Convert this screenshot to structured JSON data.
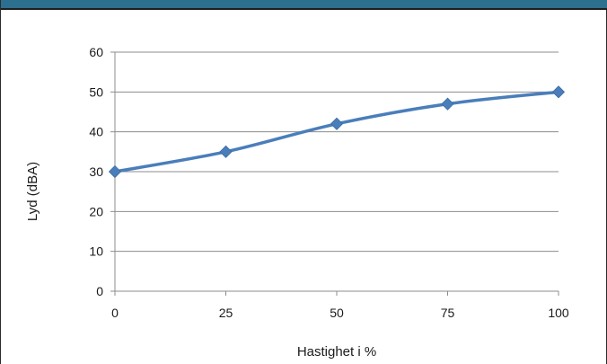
{
  "header": {
    "title": "",
    "color": "#2d6f8e"
  },
  "chart_data": {
    "type": "line",
    "x": [
      0,
      25,
      50,
      75,
      100
    ],
    "xticks": [
      0,
      25,
      50,
      75,
      100
    ],
    "series": [
      {
        "name": "",
        "values": [
          30,
          35,
          42,
          47,
          50
        ],
        "color": "#4a7ebb",
        "marker": "diamond"
      }
    ],
    "xlabel": "Hastighet i %",
    "ylabel": "Lyd (dBA)",
    "xlim": [
      0,
      100
    ],
    "ylim": [
      0,
      60
    ],
    "yticks": [
      0,
      10,
      20,
      30,
      40,
      50,
      60
    ],
    "grid": "horizontal",
    "legend": "none"
  }
}
